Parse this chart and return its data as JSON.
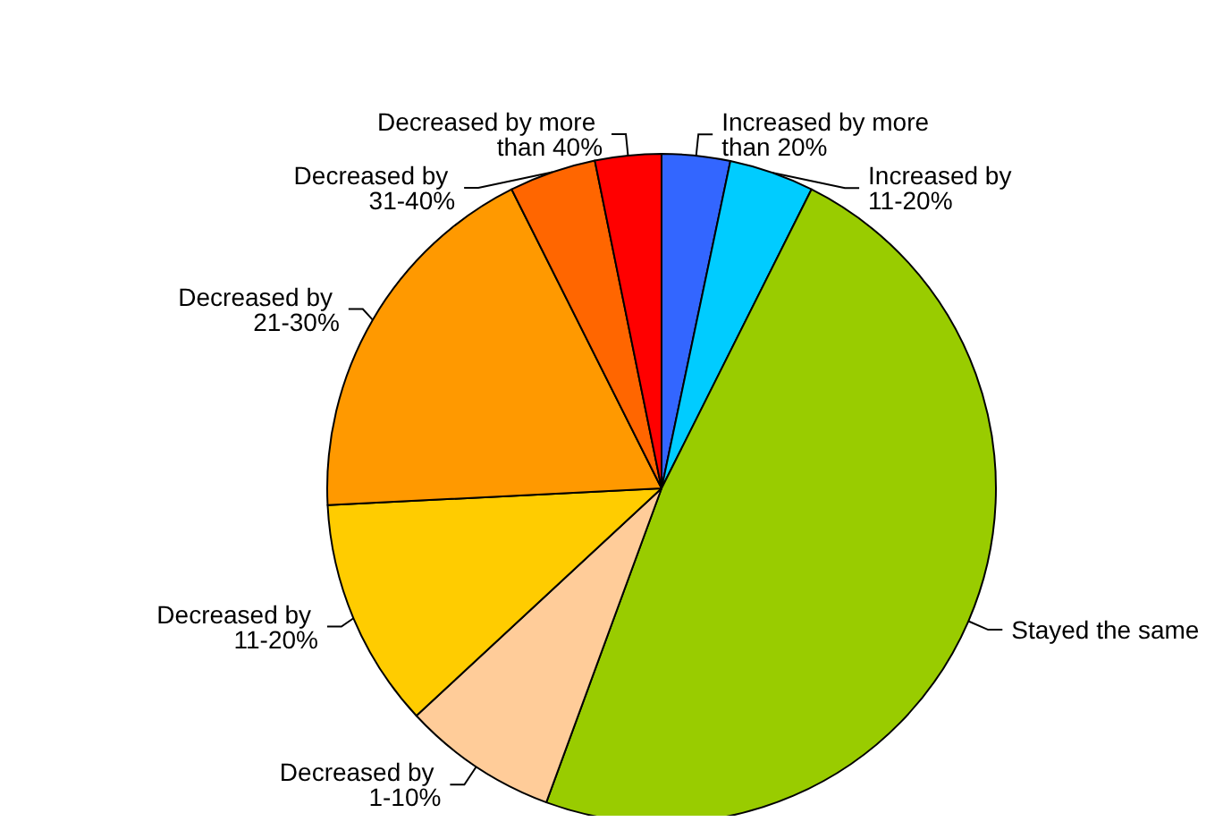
{
  "chart_data": {
    "type": "pie",
    "categories": [
      "Increased by more than 20%",
      "Increased by 11-20%",
      "Stayed the same",
      "Decreased by 1-10%",
      "Decreased by 11-20%",
      "Decreased by 21-30%",
      "Decreased by 31-40%",
      "Decreased by more than 40%"
    ],
    "values": [
      3.3,
      4.1,
      48.2,
      7.5,
      11.1,
      18.4,
      4.2,
      3.2
    ],
    "colors": [
      "#3366ff",
      "#00ccff",
      "#99cc00",
      "#ffcc99",
      "#ffcc00",
      "#ff9900",
      "#ff6600",
      "#ff0000"
    ],
    "legend": false
  }
}
